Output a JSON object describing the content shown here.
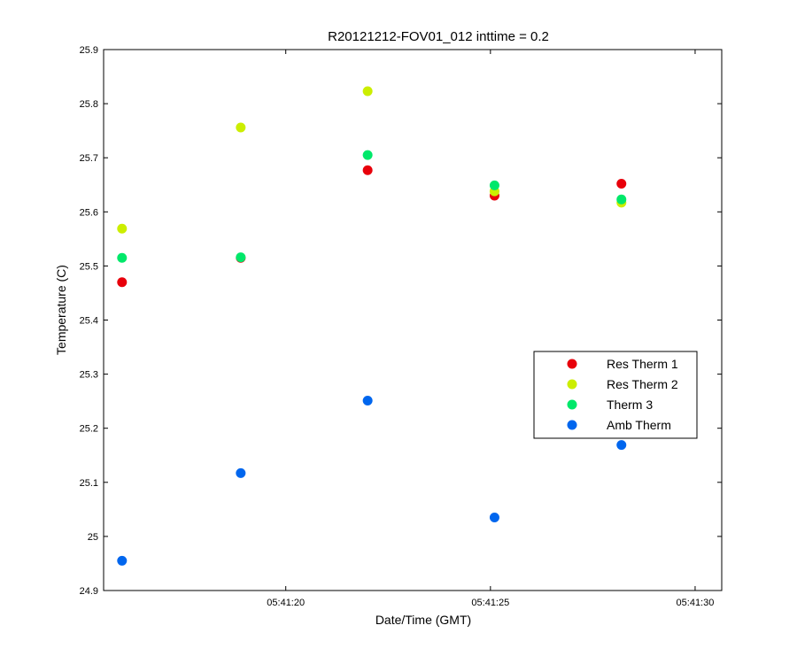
{
  "chart_data": {
    "type": "scatter",
    "title": "R20121212-FOV01_012 inttime = 0.2",
    "xlabel": "Date/Time (GMT)",
    "ylabel": "Temperature (C)",
    "xlim": [
      "05:41:15.55",
      "05:41:30.65"
    ],
    "ylim": [
      24.9,
      25.9
    ],
    "x_ticks": [
      "05:41:20",
      "05:41:25",
      "05:41:30"
    ],
    "y_ticks": [
      "24.9",
      "25",
      "25.1",
      "25.2",
      "25.3",
      "25.4",
      "25.5",
      "25.6",
      "25.7",
      "25.8",
      "25.9"
    ],
    "grid": false,
    "legend_position": "right",
    "x": [
      "05:41:16.0",
      "05:41:18.9",
      "05:41:22.0",
      "05:41:25.1",
      "05:41:28.2"
    ],
    "series": [
      {
        "name": "Res Therm 1",
        "color": "#e8000b",
        "values": [
          25.47,
          25.515,
          25.677,
          25.63,
          25.652
        ]
      },
      {
        "name": "Res Therm 2",
        "color": "#ccee00",
        "values": [
          25.569,
          25.756,
          25.823,
          25.638,
          25.617
        ]
      },
      {
        "name": "Therm 3",
        "color": "#00e86a",
        "values": [
          25.515,
          25.516,
          25.705,
          25.649,
          25.623
        ]
      },
      {
        "name": "Amb Therm",
        "color": "#0066ee",
        "values": [
          24.955,
          25.117,
          25.251,
          25.035,
          25.169
        ]
      }
    ]
  }
}
